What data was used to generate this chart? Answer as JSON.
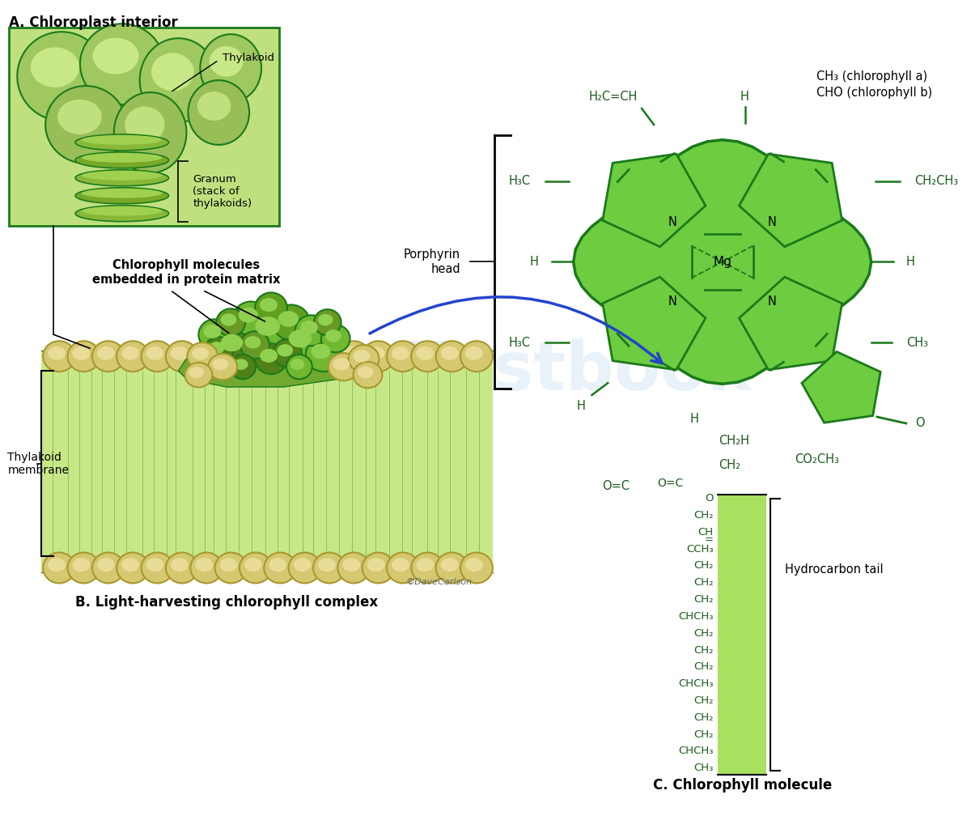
{
  "background_color": "#ffffff",
  "fig_width": 12.0,
  "fig_height": 10.08,
  "section_A_title": "A. Chloroplast interior",
  "section_B_title": "B. Light-harvesting chlorophyll complex",
  "section_C_title": "C. Chlorophyll molecule",
  "label_thylakoid": "Thylakoid",
  "label_granum": "Granum\n(stack of\nthylakoids)",
  "label_chlorophyll_embedded": "Chlorophyll molecules\nembedded in protein matrix",
  "label_thylakoid_membrane": "Thylakoid\nmembrane",
  "label_porphyrin_head": "Porphyrin\nhead",
  "label_hydrocarbon_tail": "Hydrocarbon tail",
  "label_copyright": "©DaveCarlson",
  "top_right_note": "CH₃ (chlorophyll a)\nCHO (chlorophyll b)",
  "green_dark": "#1a7a1a",
  "green_ring": "#50c030",
  "green_ring_edge": "#1a6a1a",
  "green_light_bg": "#b8e870",
  "green_mid": "#8dc840",
  "green_tail_fill": "#a8e060",
  "tan_sphere": "#d4c870",
  "tan_edge": "#a89830",
  "text_color": "#000000",
  "text_green": "#1a5a1a",
  "arrow_blue": "#2244cc",
  "watermark_color": "#c8ddf0",
  "watermark_alpha": 0.4
}
